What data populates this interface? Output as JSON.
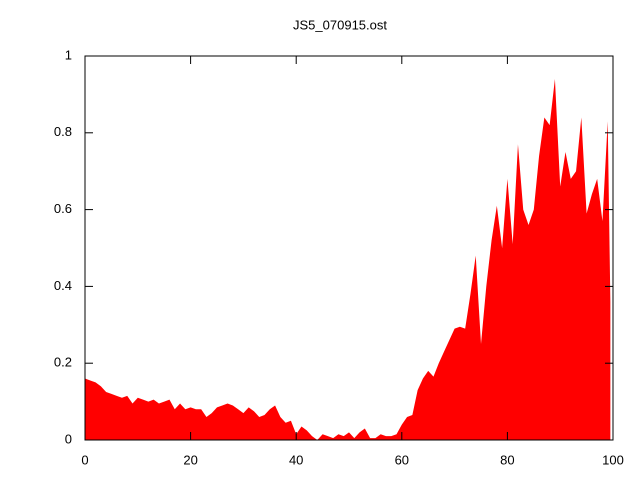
{
  "chart_data": {
    "type": "area",
    "title": "JS5_070915.ost",
    "x": [
      0,
      1,
      2,
      3,
      4,
      5,
      6,
      7,
      8,
      9,
      10,
      11,
      12,
      13,
      14,
      15,
      16,
      17,
      18,
      19,
      20,
      21,
      22,
      23,
      24,
      25,
      26,
      27,
      28,
      29,
      30,
      31,
      32,
      33,
      34,
      35,
      36,
      37,
      38,
      39,
      40,
      41,
      42,
      43,
      44,
      45,
      46,
      47,
      48,
      49,
      50,
      51,
      52,
      53,
      54,
      55,
      56,
      57,
      58,
      59,
      60,
      61,
      62,
      63,
      64,
      65,
      66,
      67,
      68,
      69,
      70,
      71,
      72,
      73,
      74,
      75,
      76,
      77,
      78,
      79,
      80,
      81,
      82,
      83,
      84,
      85,
      86,
      87,
      88,
      89,
      90,
      91,
      92,
      93,
      94,
      95,
      96,
      97,
      98,
      99,
      99.5
    ],
    "series": [
      {
        "name": "JS5_070915.ost",
        "color": "#ff0000",
        "values": [
          0.16,
          0.155,
          0.15,
          0.14,
          0.125,
          0.12,
          0.115,
          0.11,
          0.115,
          0.095,
          0.11,
          0.105,
          0.1,
          0.105,
          0.095,
          0.1,
          0.105,
          0.08,
          0.095,
          0.08,
          0.085,
          0.08,
          0.08,
          0.06,
          0.07,
          0.085,
          0.09,
          0.095,
          0.09,
          0.08,
          0.07,
          0.085,
          0.075,
          0.06,
          0.065,
          0.08,
          0.09,
          0.06,
          0.045,
          0.05,
          0.015,
          0.035,
          0.025,
          0.01,
          0.0,
          0.015,
          0.01,
          0.005,
          0.015,
          0.01,
          0.02,
          0.005,
          0.02,
          0.03,
          0.005,
          0.005,
          0.015,
          0.01,
          0.01,
          0.015,
          0.04,
          0.06,
          0.065,
          0.13,
          0.16,
          0.18,
          0.165,
          0.2,
          0.23,
          0.26,
          0.29,
          0.295,
          0.29,
          0.38,
          0.48,
          0.25,
          0.4,
          0.52,
          0.61,
          0.5,
          0.68,
          0.51,
          0.77,
          0.6,
          0.56,
          0.6,
          0.74,
          0.84,
          0.82,
          0.94,
          0.66,
          0.75,
          0.68,
          0.7,
          0.84,
          0.59,
          0.64,
          0.68,
          0.57,
          0.83,
          0.36
        ]
      }
    ],
    "xlim": [
      0,
      100
    ],
    "ylim": [
      0,
      1
    ],
    "xticks": [
      0,
      20,
      40,
      60,
      80,
      100
    ],
    "yticks": [
      0,
      0.2,
      0.4,
      0.6,
      0.8,
      1
    ]
  }
}
